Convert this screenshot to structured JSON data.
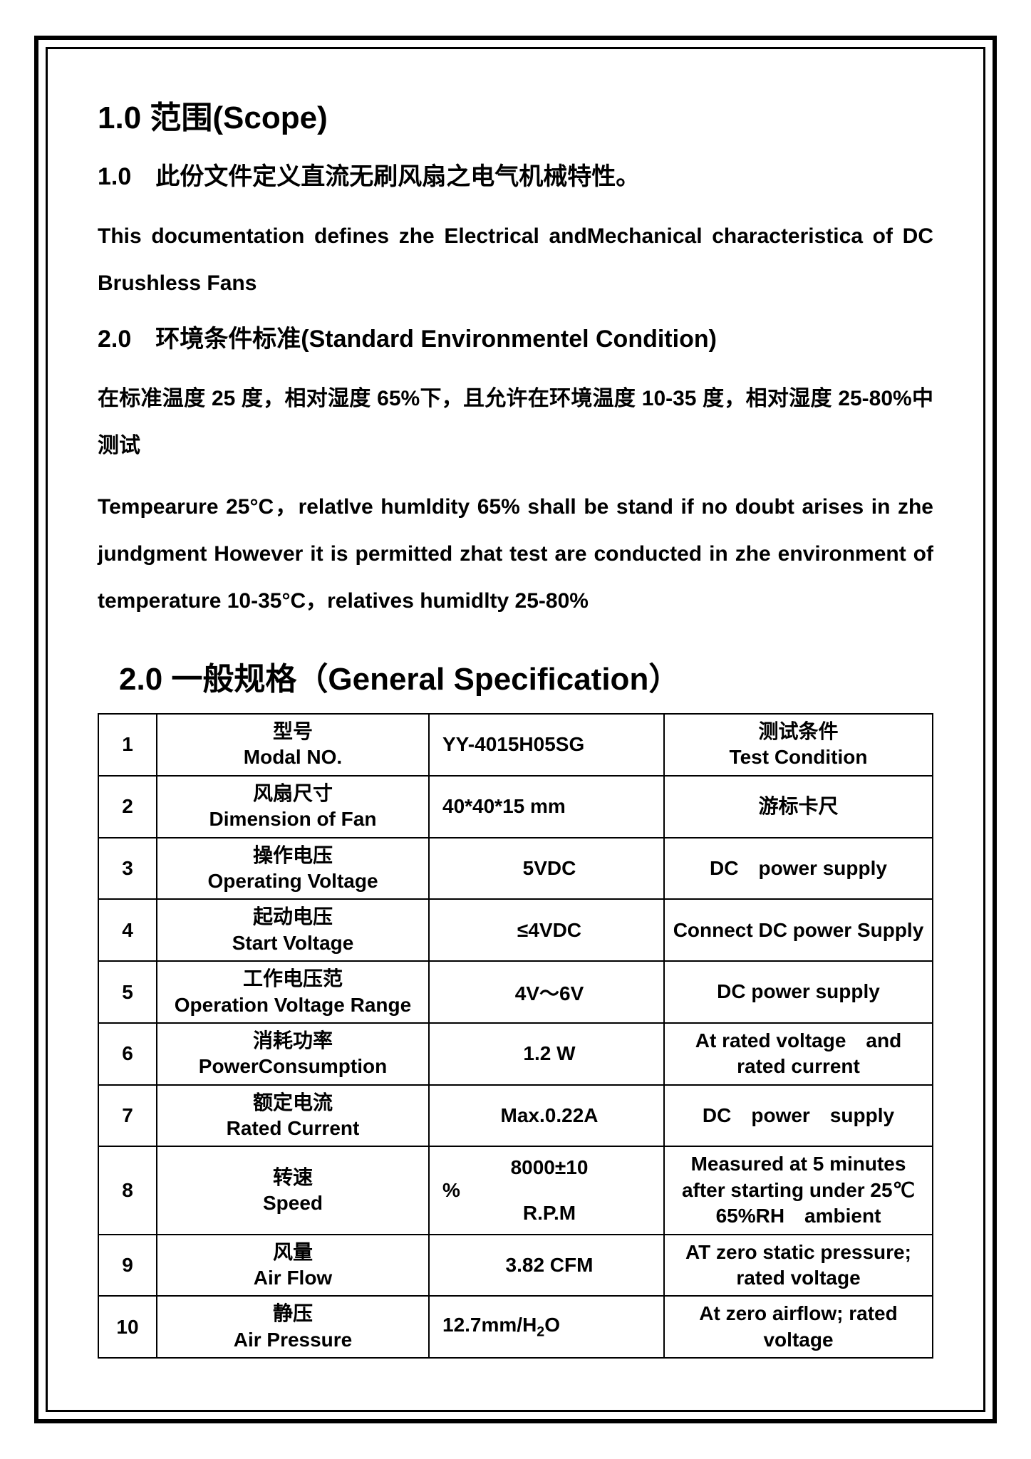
{
  "scope": {
    "heading": "1.0 范围(Scope)",
    "sub1_cn": "1.0　此份文件定义直流无刷风扇之电气机械特性。",
    "sub1_en": "This documentation defines zhe Electrical andMechanical characteristica of DC Brushless Fans",
    "sub2_heading": "2.0　环境条件标准(Standard Environmentel Condition)",
    "sub2_cn": "在标准温度 25 度，相对湿度 65%下，且允许在环境温度 10-35 度，相对湿度 25-80%中测试",
    "sub2_en": "Tempearure 25°C，relatlve humldity 65% shall be stand if no doubt arises in zhe jundgment However it is permitted zhat test are conducted in zhe environment of temperature 10-35°C，relatives humidlty 25-80%"
  },
  "general": {
    "heading": "2.0 一般规格（General Specification）"
  },
  "table": {
    "header_test_cn": "测试条件",
    "header_test_en": "Test Condition",
    "rows": [
      {
        "n": "1",
        "cn": "型号",
        "en": "Modal NO.",
        "val": "YY-4015H05SG",
        "cond_cn": "测试条件",
        "cond_en": "Test Condition"
      },
      {
        "n": "2",
        "cn": "风扇尺寸",
        "en": "Dimension of Fan",
        "val": "40*40*15 mm",
        "cond": "游标卡尺"
      },
      {
        "n": "3",
        "cn": "操作电压",
        "en": "Operating Voltage",
        "val": "5VDC",
        "cond": "DC　power supply"
      },
      {
        "n": "4",
        "cn": "起动电压",
        "en": "Start Voltage",
        "val": "≤4VDC",
        "cond": "Connect DC power Supply"
      },
      {
        "n": "5",
        "cn": "工作电压范",
        "en": "Operation Voltage Range",
        "val": "4V～6V",
        "cond": "DC power supply"
      },
      {
        "n": "6",
        "cn": "消耗功率",
        "en": "PowerConsumption",
        "val": "1.2 W",
        "cond": "At rated voltage　and rated current"
      },
      {
        "n": "7",
        "cn": "额定电流",
        "en": "Rated Current",
        "val": "Max.0.22A",
        "cond": "DC　power　supply"
      },
      {
        "n": "8",
        "cn": "转速",
        "en": "Speed",
        "val": "8000±10% R.P.M",
        "cond": "Measured at 5 minutes after starting under 25℃　65%RH　ambient"
      },
      {
        "n": "9",
        "cn": "风量",
        "en": "Air Flow",
        "val": "3.82 CFM",
        "cond": "AT zero static pressure; rated voltage"
      },
      {
        "n": "10",
        "cn": "静压",
        "en": "Air Pressure",
        "val_html": "12.7mm/H₂O",
        "cond": "At zero airflow; rated　voltage"
      }
    ]
  }
}
